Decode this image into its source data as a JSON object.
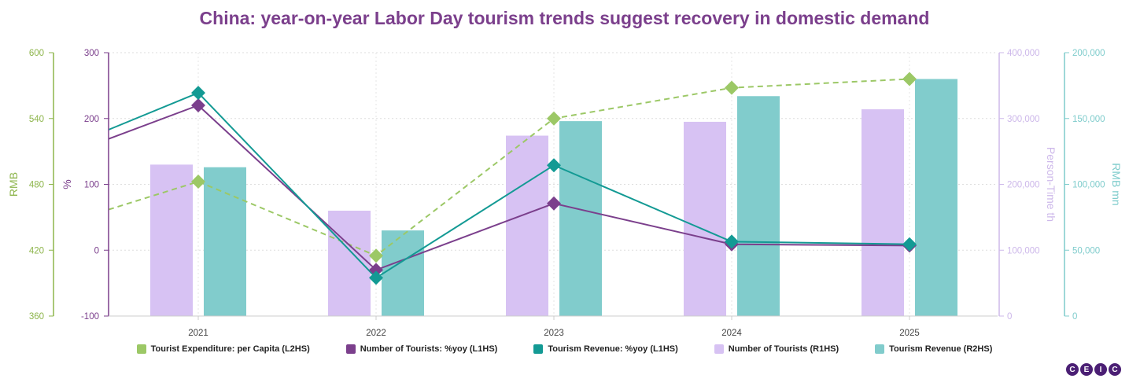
{
  "chart_data": {
    "type": "bar",
    "title": "China: year-on-year Labor Day tourism trends suggest recovery in domestic demand",
    "categories": [
      "2021",
      "2022",
      "2023",
      "2024",
      "2025"
    ],
    "axes": {
      "L2HS": {
        "label": "RMB",
        "ticks": [
          "600",
          "540",
          "480",
          "420",
          "360"
        ],
        "range": [
          360,
          600
        ],
        "color": "#8db54b"
      },
      "L1HS": {
        "label": "%",
        "ticks": [
          "300",
          "200",
          "100",
          "0",
          "-100"
        ],
        "range": [
          -100,
          300
        ],
        "color": "#7b3f8c"
      },
      "R1HS": {
        "label": "Person-Time th",
        "ticks": [
          "400,000",
          "300,000",
          "200,000",
          "100,000",
          "0"
        ],
        "range": [
          0,
          400000
        ],
        "color": "#cdb8ea"
      },
      "R2HS": {
        "label": "RMB mn",
        "ticks": [
          "200,000",
          "150,000",
          "100,000",
          "50,000",
          "0"
        ],
        "range": [
          0,
          200000
        ],
        "color": "#7fcccc"
      }
    },
    "series": [
      {
        "name": "Tourist Expenditure: per Capita (L2HS)",
        "type": "line",
        "style": "dashed",
        "axis": "L2HS",
        "color": "#9cc866",
        "values": [
          482.5,
          415.0,
          540.0,
          568.0,
          576.0
        ],
        "start": 457.0
      },
      {
        "name": "Number of Tourists: %yoy (L1HS)",
        "type": "line",
        "axis": "L1HS",
        "color": "#7b3f8c",
        "values": [
          220.0,
          -30.0,
          71.0,
          9.0,
          7.0
        ],
        "start": 169.0
      },
      {
        "name": "Tourism Revenue: %yoy (L1HS)",
        "type": "line",
        "axis": "L1HS",
        "color": "#139a94",
        "values": [
          239.0,
          -42.0,
          129.0,
          13.0,
          9.0
        ],
        "start": 183.0
      },
      {
        "name": "Number of Tourists (R1HS)",
        "type": "bar",
        "axis": "R1HS",
        "color": "#d7c2f3",
        "values": [
          230000,
          160000,
          274000,
          295000,
          314000
        ]
      },
      {
        "name": "Tourism Revenue (R2HS)",
        "type": "bar",
        "axis": "R2HS",
        "color": "#81cccc",
        "values": [
          113000,
          65000,
          148000,
          167000,
          180000
        ]
      }
    ],
    "grid": true,
    "legend": "bottom"
  },
  "branding": {
    "letters": [
      "C",
      "E",
      "I",
      "C"
    ]
  }
}
